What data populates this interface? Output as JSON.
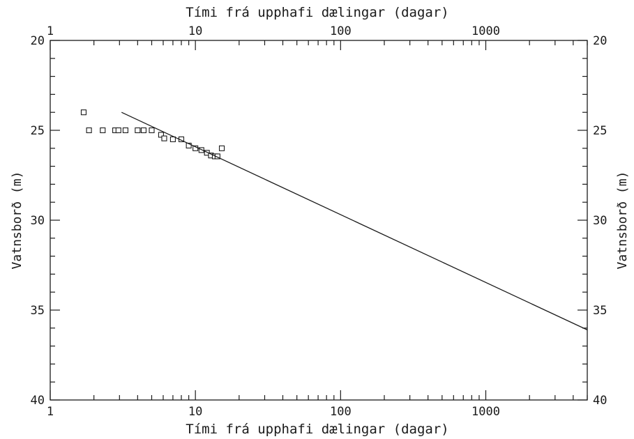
{
  "chart_data": {
    "type": "scatter",
    "xlabel": "Tími frá upphafi dælingar (dagar)",
    "xlabel_top": "Tími frá upphafi dælingar (dagar)",
    "ylabel": "Vatnsborð (m)",
    "ylabel_right": "Vatnsborð (m)",
    "x_scale": "log",
    "y_inverted": true,
    "xlim": [
      1,
      5000
    ],
    "ylim": [
      20,
      40
    ],
    "x_ticks": [
      {
        "value": 1,
        "label": "1"
      },
      {
        "value": 10,
        "label": "10"
      },
      {
        "value": 100,
        "label": "100"
      },
      {
        "value": 1000,
        "label": "1000"
      }
    ],
    "y_ticks": [
      {
        "value": 20,
        "label": "20"
      },
      {
        "value": 25,
        "label": "25"
      },
      {
        "value": 30,
        "label": "30"
      },
      {
        "value": 35,
        "label": "35"
      },
      {
        "value": 40,
        "label": "40"
      }
    ],
    "series": [
      {
        "marker": "square",
        "x": [
          1.7,
          1.85,
          2.3,
          2.8,
          2.95,
          3.3,
          4.0,
          4.4,
          5.0,
          5.8,
          6.1,
          7.0,
          8.0,
          9.0,
          10.0,
          11.0,
          12.0,
          12.8,
          13.6,
          14.2,
          15.2
        ],
        "y": [
          24.0,
          25.0,
          25.0,
          25.0,
          25.0,
          25.0,
          25.0,
          25.0,
          25.0,
          25.25,
          25.45,
          25.5,
          25.5,
          25.85,
          26.0,
          26.1,
          26.25,
          26.4,
          26.45,
          26.45,
          26.0
        ]
      },
      {
        "type": "line",
        "x": [
          3.1,
          5000
        ],
        "y": [
          24.0,
          36.1
        ]
      }
    ],
    "grid": false
  }
}
